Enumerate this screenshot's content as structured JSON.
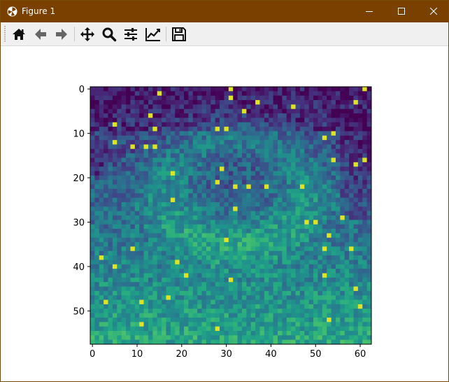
{
  "window": {
    "title": "Figure 1",
    "title_bar_color": "#7a4000"
  },
  "toolbar": {
    "tools": [
      {
        "name": "home-icon",
        "tooltip": ""
      },
      {
        "name": "back-arrow-icon",
        "tooltip": ""
      },
      {
        "name": "forward-arrow-icon",
        "tooltip": ""
      },
      {
        "name": "pan-move-icon",
        "tooltip": ""
      },
      {
        "name": "zoom-magnifier-icon",
        "tooltip": ""
      },
      {
        "name": "configure-subplots-icon",
        "tooltip": ""
      },
      {
        "name": "edit-axis-line-icon",
        "tooltip": ""
      },
      {
        "name": "save-floppy-icon",
        "tooltip": ""
      }
    ]
  },
  "chart_data": {
    "type": "heatmap",
    "colormap": "viridis",
    "columns": 63,
    "rows": 58,
    "xticks": [
      0,
      10,
      20,
      30,
      40,
      50,
      60
    ],
    "yticks": [
      0,
      10,
      20,
      30,
      40,
      50
    ],
    "xlim": [
      -0.5,
      62.5
    ],
    "ylim": [
      57.5,
      -0.5
    ],
    "title": "",
    "xlabel": "",
    "ylabel": "",
    "grid": false
  }
}
